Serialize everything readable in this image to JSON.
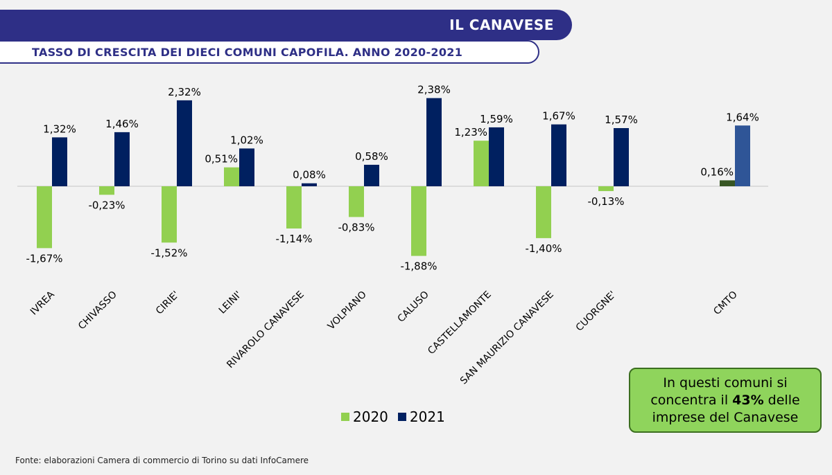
{
  "header": {
    "title": "IL CANAVESE",
    "subtitle": "TASSO DI CRESCITA DEI DIECI COMUNI CAPOFILA. ANNO 2020-2021"
  },
  "colors": {
    "banner": "#2e2f86",
    "series_2020": "#92d050",
    "series_2021": "#002060",
    "cmto_2020": "#375623",
    "cmto_2021": "#2f5597"
  },
  "chart_data": {
    "type": "bar",
    "title": "TASSO DI CRESCITA DEI DIECI COMUNI CAPOFILA. ANNO 2020-2021",
    "xlabel": "",
    "ylabel": "",
    "categories": [
      "IVREA",
      "CHIVASSO",
      "CIRIE'",
      "LEINI'",
      "RIVAROLO CANAVESE",
      "VOLPIANO",
      "CALUSO",
      "CASTELLAMONTE",
      "SAN MAURIZIO CANAVESE",
      "CUORGNE'",
      "CMTO"
    ],
    "series": [
      {
        "name": "2020",
        "values": [
          -1.67,
          -0.23,
          -1.52,
          0.51,
          -1.14,
          -0.83,
          -1.88,
          1.23,
          -1.4,
          -0.13,
          0.16
        ],
        "labels": [
          "-1,67%",
          "-0,23%",
          "-1,52%",
          "0,51%",
          "-1,14%",
          "-0,83%",
          "-1,88%",
          "1,23%",
          "-1,40%",
          "-0,13%",
          "0,16%"
        ]
      },
      {
        "name": "2021",
        "values": [
          1.32,
          1.46,
          2.32,
          1.02,
          0.08,
          0.58,
          2.38,
          1.59,
          1.67,
          1.57,
          1.64
        ],
        "labels": [
          "1,32%",
          "1,46%",
          "2,32%",
          "1,02%",
          "0,08%",
          "0,58%",
          "2,38%",
          "1,59%",
          "1,67%",
          "1,57%",
          "1,64%"
        ]
      }
    ],
    "ylim": [
      -2.2,
      2.6
    ],
    "grid": false,
    "legend": "bottom-center"
  },
  "legend": {
    "label_2020": "2020",
    "label_2021": "2021"
  },
  "note": {
    "line1": "In questi comuni si",
    "line2_prefix": "concentra il ",
    "line2_bold": "43%",
    "line2_suffix": " delle",
    "line3": "imprese del Canavese"
  },
  "footer": {
    "source": "Fonte: elaborazioni Camera di commercio di Torino su dati InfoCamere"
  }
}
